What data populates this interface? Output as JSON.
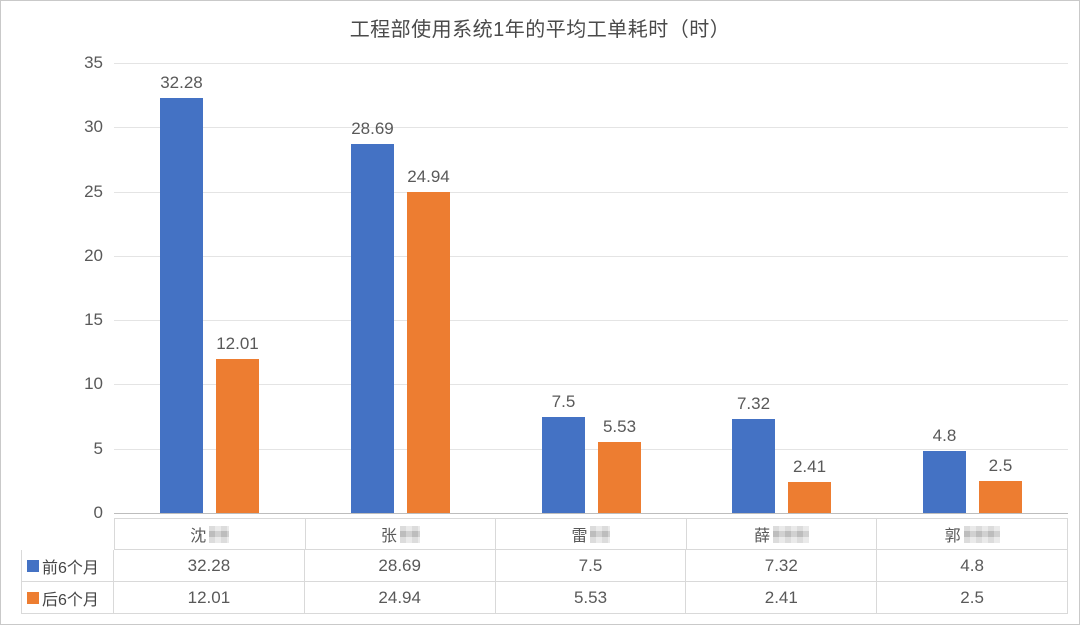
{
  "chart_data": {
    "type": "bar",
    "title": "工程部使用系统1年的平均工单耗时（时）",
    "categories": [
      {
        "label": "沈",
        "redacted": true,
        "redacted_chars": 1
      },
      {
        "label": "张",
        "redacted": true,
        "redacted_chars": 1
      },
      {
        "label": "雷",
        "redacted": true,
        "redacted_chars": 1
      },
      {
        "label": "薛",
        "redacted": true,
        "redacted_chars": 2
      },
      {
        "label": "郭",
        "redacted": true,
        "redacted_chars": 2
      }
    ],
    "series": [
      {
        "name": "前6个月",
        "color": "#4472C4",
        "values": [
          32.28,
          28.69,
          7.5,
          7.32,
          4.8
        ]
      },
      {
        "name": "后6个月",
        "color": "#ED7D31",
        "values": [
          12.01,
          24.94,
          5.53,
          2.41,
          2.5
        ]
      }
    ],
    "xlabel": "",
    "ylabel": "",
    "ylim": [
      0,
      35
    ],
    "ytick_interval": 5,
    "yticks": [
      "0",
      "5",
      "10",
      "15",
      "20",
      "25",
      "30",
      "35"
    ],
    "grid": true,
    "data_labels": true,
    "legend_position": "table-rows-left"
  },
  "colors": {
    "grid": "#e4e4e4",
    "axis": "#bdbdbd",
    "table_border": "#d9d9d9",
    "text": "#595959",
    "title_text": "#4a4a4a"
  }
}
